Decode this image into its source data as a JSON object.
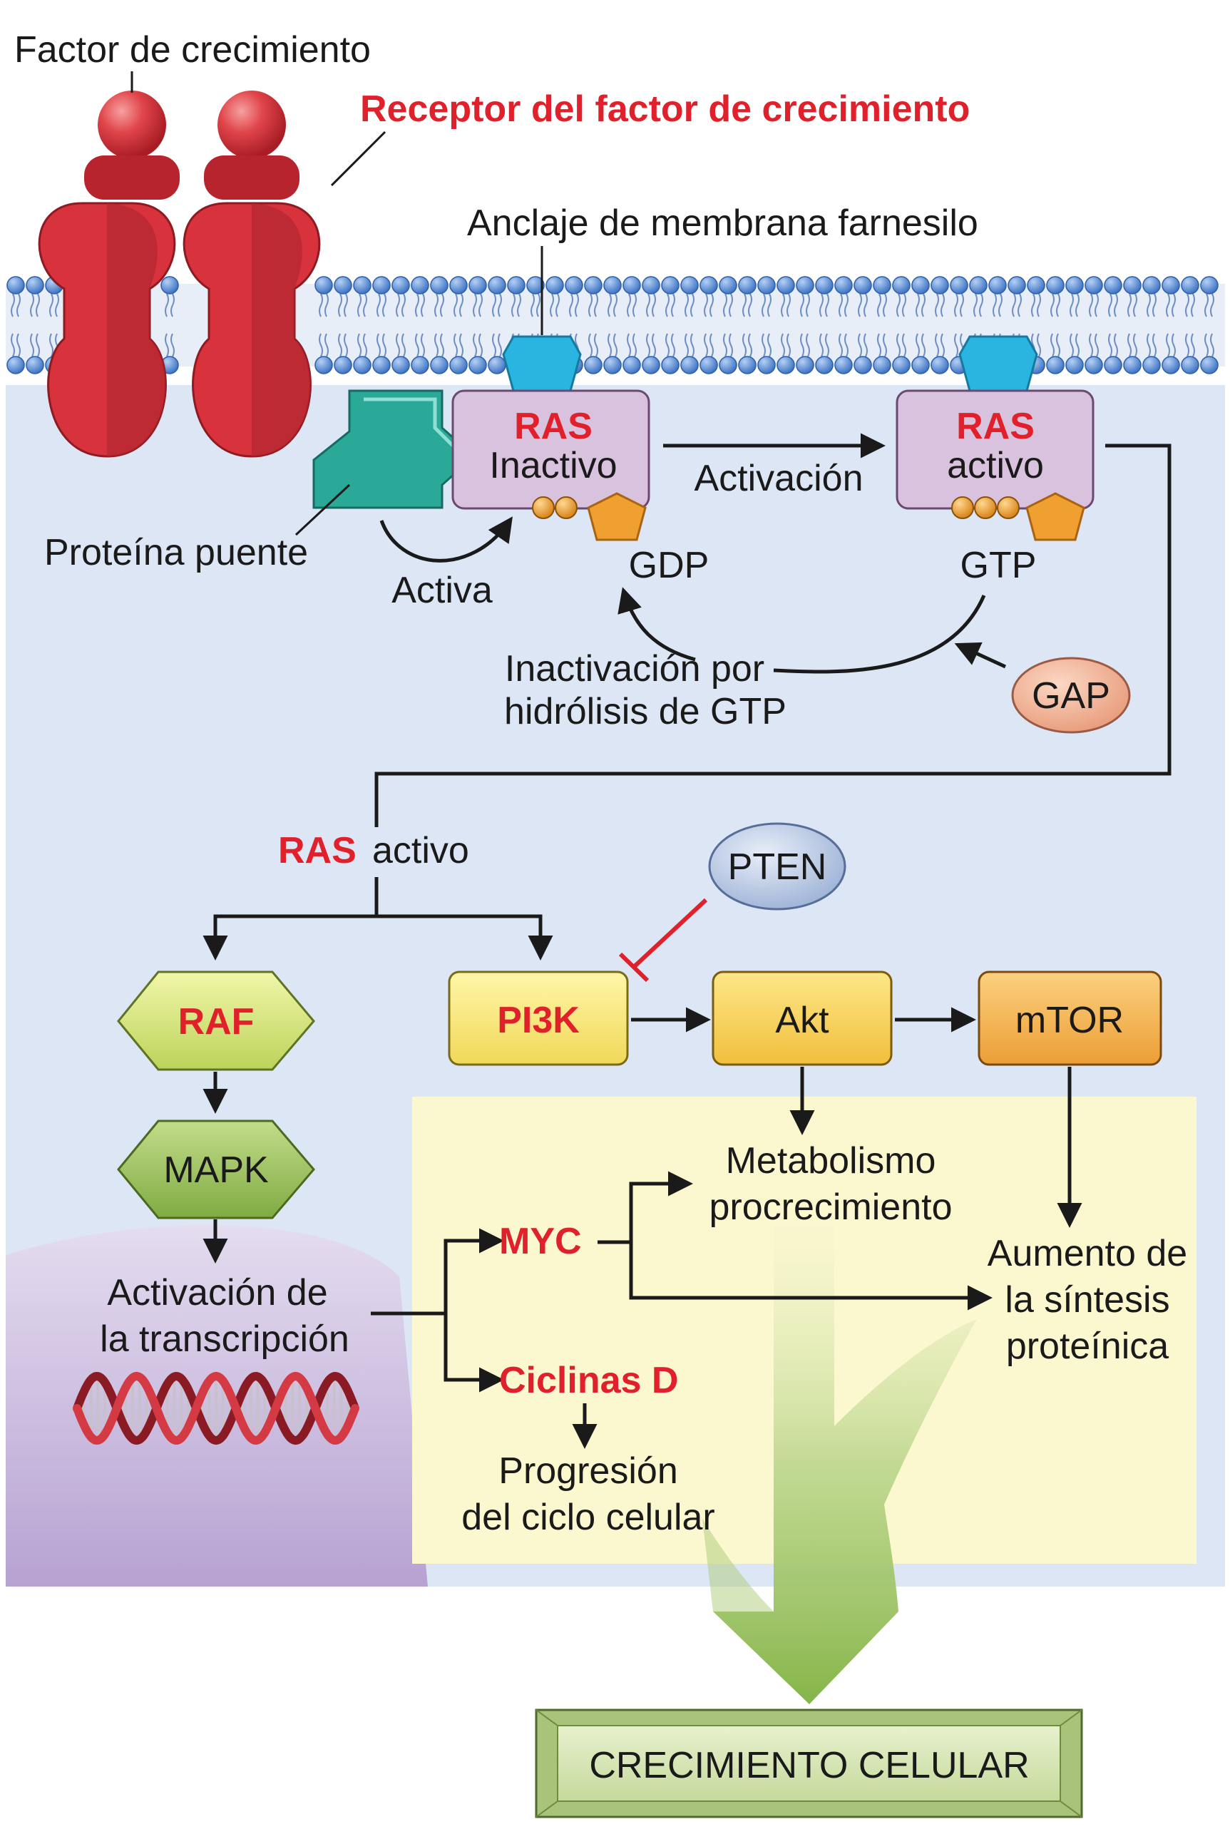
{
  "labels": {
    "growth_factor": "Factor de crecimiento",
    "receptor": "Receptor del factor de crecimiento",
    "farnesyl_anchor": "Anclaje de membrana farnesilo",
    "bridge_protein": "Proteína puente",
    "activates": "Activa",
    "ras_inactive_title": "RAS",
    "ras_inactive_state": "Inactivo",
    "activation": "Activación",
    "ras_active_title": "RAS",
    "ras_active_state": "activo",
    "gdp": "GDP",
    "gtp": "GTP",
    "inactivation_line1": "Inactivación por",
    "inactivation_line2": "hidrólisis de GTP",
    "gap": "GAP",
    "ras_active_ras": "RAS",
    "ras_active_word": "activo",
    "pten": "PTEN",
    "raf": "RAF",
    "pi3k": "PI3K",
    "akt": "Akt",
    "mtor": "mTOR",
    "mapk": "MAPK",
    "metabolism_line1": "Metabolismo",
    "metabolism_line2": "procrecimiento",
    "myc": "MYC",
    "protein_synth_line1": "Aumento de",
    "protein_synth_line2": "la síntesis",
    "protein_synth_line3": "proteínica",
    "transcription_line1": "Activación de",
    "transcription_line2": "la transcripción",
    "cyclins": "Ciclinas D",
    "cell_cycle_line1": "Progresión",
    "cell_cycle_line2": "del ciclo celular",
    "cell_growth": "CRECIMIENTO CELULAR"
  },
  "colors": {
    "receptor": "#d8323c",
    "membrane_head": "#5b8ed6",
    "cytoplasm": "#dde6f4",
    "ras_box": "#d9c2de",
    "bridge": "#2aa898",
    "anchor": "#2ab4e0",
    "gdp_gtp": "#f0a030",
    "highlight_red": "#e0202a",
    "green_arrow": "#8dbb52"
  }
}
